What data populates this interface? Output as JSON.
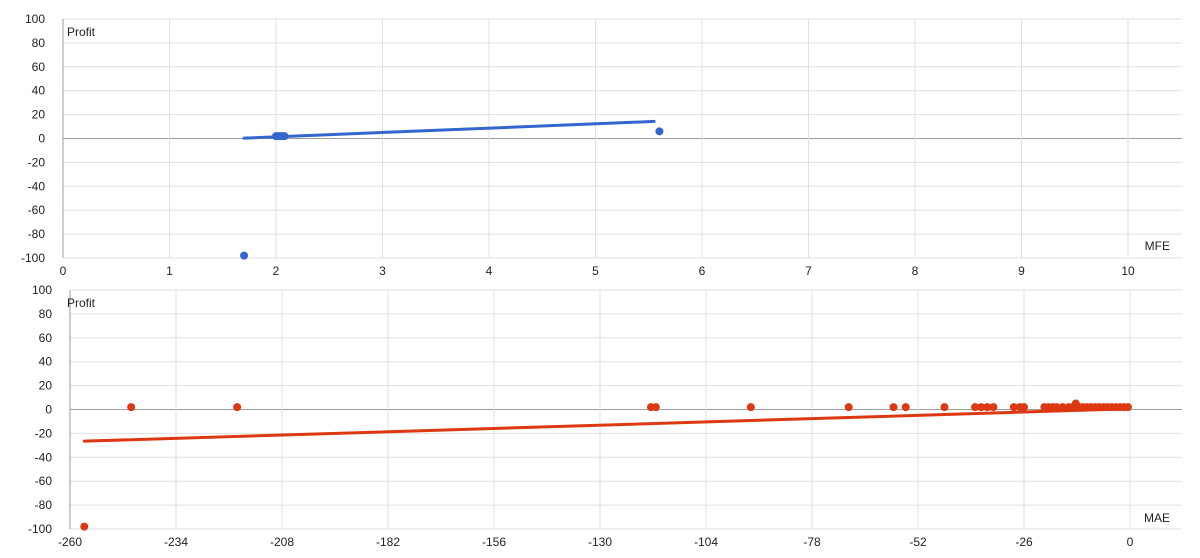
{
  "chart_data": [
    {
      "type": "scatter",
      "title": "",
      "xlabel": "MFE",
      "ylabel": "Profit",
      "xlim": [
        0,
        10
      ],
      "ylim": [
        -100,
        100
      ],
      "xticks": [
        0,
        1,
        2,
        3,
        4,
        5,
        6,
        7,
        8,
        9,
        10
      ],
      "yticks": [
        100,
        80,
        60,
        40,
        20,
        0,
        -20,
        -40,
        -60,
        -80,
        -100
      ],
      "grid": true,
      "colors": {
        "points": "#3366cc",
        "trendline": "#3366cc"
      },
      "points": [
        [
          1.7,
          -98
        ],
        [
          2.0,
          2
        ],
        [
          2.02,
          2
        ],
        [
          2.04,
          2
        ],
        [
          2.06,
          2
        ],
        [
          2.08,
          2
        ],
        [
          5.6,
          6
        ]
      ],
      "trendline": [
        [
          1.7,
          0.3
        ],
        [
          5.55,
          14.3
        ]
      ]
    },
    {
      "type": "scatter",
      "title": "",
      "xlabel": "MAE",
      "ylabel": "Profit",
      "xlim": [
        -260,
        0
      ],
      "ylim": [
        -100,
        100
      ],
      "xticks": [
        -260,
        -234,
        -208,
        -182,
        -156,
        -130,
        -104,
        -78,
        -52,
        -26,
        0
      ],
      "yticks": [
        100,
        80,
        60,
        40,
        20,
        0,
        -20,
        -40,
        -60,
        -80,
        -100
      ],
      "grid": true,
      "colors": {
        "points": "#dc3912",
        "trendline": "#dc3912"
      },
      "points": [
        [
          -256.5,
          -98
        ],
        [
          -245,
          2
        ],
        [
          -219,
          2
        ],
        [
          -117.5,
          2
        ],
        [
          -116.3,
          2
        ],
        [
          -93,
          2
        ],
        [
          -69,
          2
        ],
        [
          -58,
          2
        ],
        [
          -55,
          2
        ],
        [
          -45.5,
          2
        ],
        [
          -38,
          2
        ],
        [
          -36.5,
          2
        ],
        [
          -35,
          2
        ],
        [
          -33.5,
          2
        ],
        [
          -28.5,
          2
        ],
        [
          -27,
          2
        ],
        [
          -26,
          2
        ],
        [
          -21,
          2
        ],
        [
          -20,
          2
        ],
        [
          -19,
          2
        ],
        [
          -18,
          2
        ],
        [
          -16.5,
          2
        ],
        [
          -15,
          2
        ],
        [
          -14,
          2
        ],
        [
          -13.3,
          5
        ],
        [
          -12.5,
          2
        ],
        [
          -11.5,
          2
        ],
        [
          -10.5,
          2
        ],
        [
          -9.5,
          2
        ],
        [
          -8.5,
          2
        ],
        [
          -7.5,
          2
        ],
        [
          -6.5,
          2
        ],
        [
          -5.5,
          2
        ],
        [
          -4.5,
          2
        ],
        [
          -3.5,
          2
        ],
        [
          -2.5,
          2
        ],
        [
          -1.5,
          2
        ],
        [
          -0.5,
          2
        ]
      ],
      "trendline": [
        [
          -256.5,
          -26.5
        ],
        [
          -1,
          0.5
        ]
      ]
    }
  ]
}
